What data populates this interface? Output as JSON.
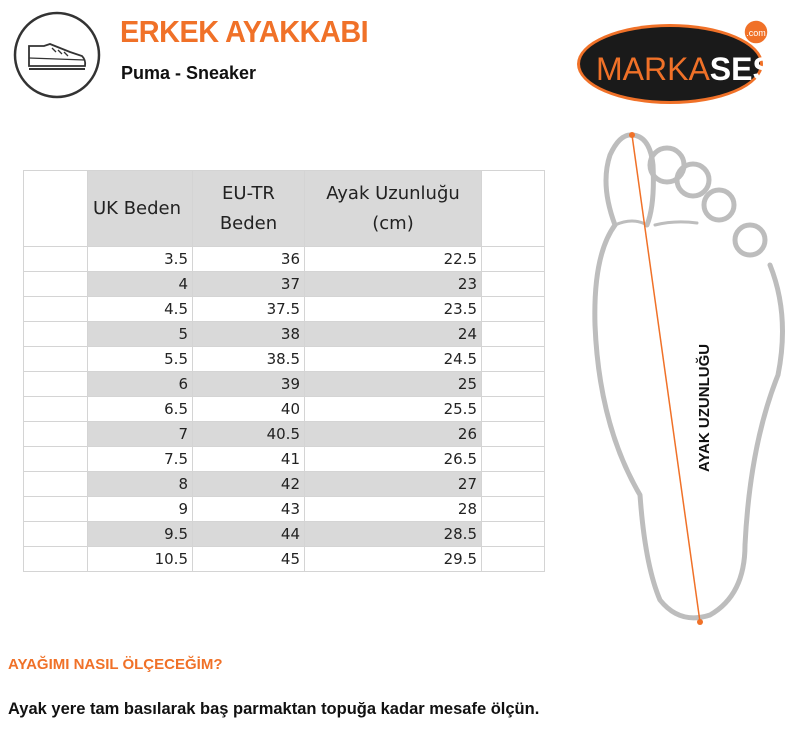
{
  "header": {
    "title": "ERKEK AYAKKABI",
    "subtitle": "Puma - Sneaker",
    "icon": "sneaker-icon",
    "logo": {
      "text_orange": "MARKA",
      "text_white": "SESİ",
      "badge": ".com"
    }
  },
  "colors": {
    "accent": "#f07128",
    "row_gray": "#d9d9d9",
    "outline_gray": "#bdbdbd"
  },
  "table": {
    "headers": [
      "UK Beden",
      "EU-TR Beden",
      "Ayak Uzunluğu (cm)"
    ],
    "rows": [
      [
        "3.5",
        "36",
        "22.5"
      ],
      [
        "4",
        "37",
        "23"
      ],
      [
        "4.5",
        "37.5",
        "23.5"
      ],
      [
        "5",
        "38",
        "24"
      ],
      [
        "5.5",
        "38.5",
        "24.5"
      ],
      [
        "6",
        "39",
        "25"
      ],
      [
        "6.5",
        "40",
        "25.5"
      ],
      [
        "7",
        "40.5",
        "26"
      ],
      [
        "7.5",
        "41",
        "26.5"
      ],
      [
        "8",
        "42",
        "27"
      ],
      [
        "9",
        "43",
        "28"
      ],
      [
        "9.5",
        "44",
        "28.5"
      ],
      [
        "10.5",
        "45",
        "29.5"
      ]
    ]
  },
  "diagram": {
    "label": "AYAK UZUNLUĞU"
  },
  "instructions": {
    "title": "AYAĞIMI NASIL ÖLÇECEĞİM?",
    "text": "Ayak yere tam basılarak baş parmaktan topuğa kadar mesafe ölçün."
  }
}
